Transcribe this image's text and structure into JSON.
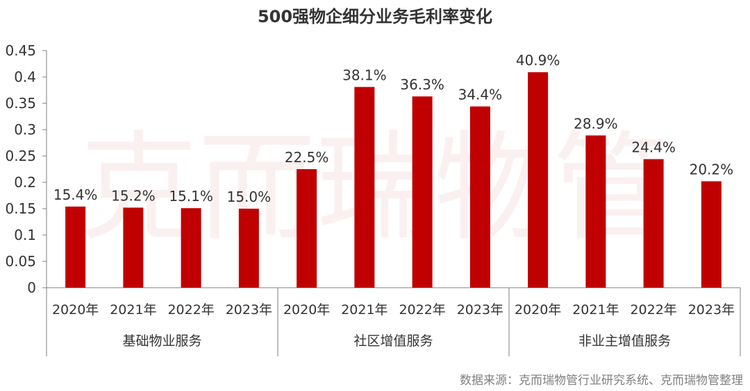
{
  "colors": {
    "bar": "#c00000",
    "axis": "#7f7f7f",
    "text": "#333333"
  },
  "watermark": "克而瑞物管",
  "chart_data": {
    "type": "bar",
    "title": "500强物企细分业务毛利率变化",
    "ylim": [
      0,
      0.45
    ],
    "yticks": [
      "0",
      "0.05",
      "0.1",
      "0.15",
      "0.2",
      "0.25",
      "0.3",
      "0.35",
      "0.4",
      "0.45"
    ],
    "grid": false,
    "groups": [
      {
        "name": "基础物业服务",
        "categories": [
          "2020年",
          "2021年",
          "2022年",
          "2023年"
        ],
        "values": [
          0.154,
          0.152,
          0.151,
          0.15
        ],
        "labels": [
          "15.4%",
          "15.2%",
          "15.1%",
          "15.0%"
        ]
      },
      {
        "name": "社区增值服务",
        "categories": [
          "2020年",
          "2021年",
          "2022年",
          "2023年"
        ],
        "values": [
          0.225,
          0.381,
          0.363,
          0.344
        ],
        "labels": [
          "22.5%",
          "38.1%",
          "36.3%",
          "34.4%"
        ]
      },
      {
        "name": "非业主增值服务",
        "categories": [
          "2020年",
          "2021年",
          "2022年",
          "2023年"
        ],
        "values": [
          0.409,
          0.289,
          0.244,
          0.202
        ],
        "labels": [
          "40.9%",
          "28.9%",
          "24.4%",
          "20.2%"
        ]
      }
    ],
    "source": "数据来源：克而瑞物管行业研究系统、克而瑞物管整理"
  }
}
